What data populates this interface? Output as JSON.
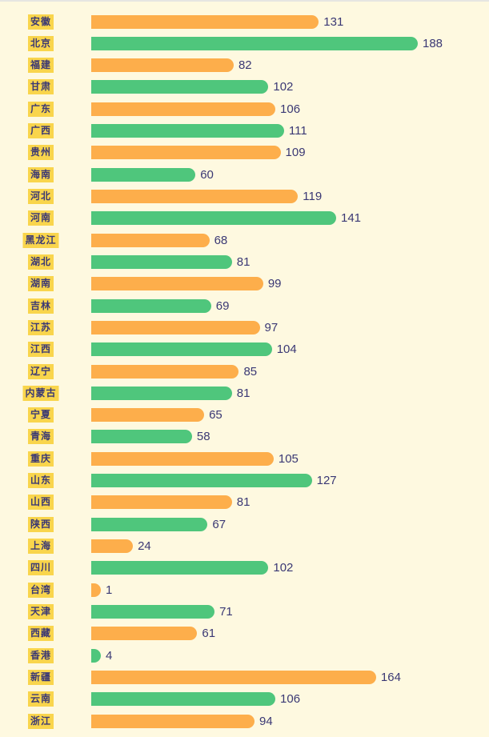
{
  "chart_data": {
    "type": "bar",
    "orientation": "horizontal",
    "title": "",
    "xlabel": "",
    "ylabel": "",
    "grid": false,
    "xlim": [
      0,
      188
    ],
    "colors": {
      "odd_rows": "#fdae4b",
      "even_rows": "#4fc67c",
      "category_label_bg": "#f9d54c",
      "text": "#3a3874",
      "background": "#fef9e0"
    },
    "categories": [
      "安徽",
      "北京",
      "福建",
      "甘肃",
      "广东",
      "广西",
      "贵州",
      "海南",
      "河北",
      "河南",
      "黑龙江",
      "湖北",
      "湖南",
      "吉林",
      "江苏",
      "江西",
      "辽宁",
      "内蒙古",
      "宁夏",
      "青海",
      "重庆",
      "山东",
      "山西",
      "陕西",
      "上海",
      "四川",
      "台湾",
      "天津",
      "西藏",
      "香港",
      "新疆",
      "云南",
      "浙江"
    ],
    "values": [
      131,
      188,
      82,
      102,
      106,
      111,
      109,
      60,
      119,
      141,
      68,
      81,
      99,
      69,
      97,
      104,
      85,
      81,
      65,
      58,
      105,
      127,
      81,
      67,
      24,
      102,
      1,
      71,
      61,
      4,
      164,
      106,
      94
    ]
  }
}
